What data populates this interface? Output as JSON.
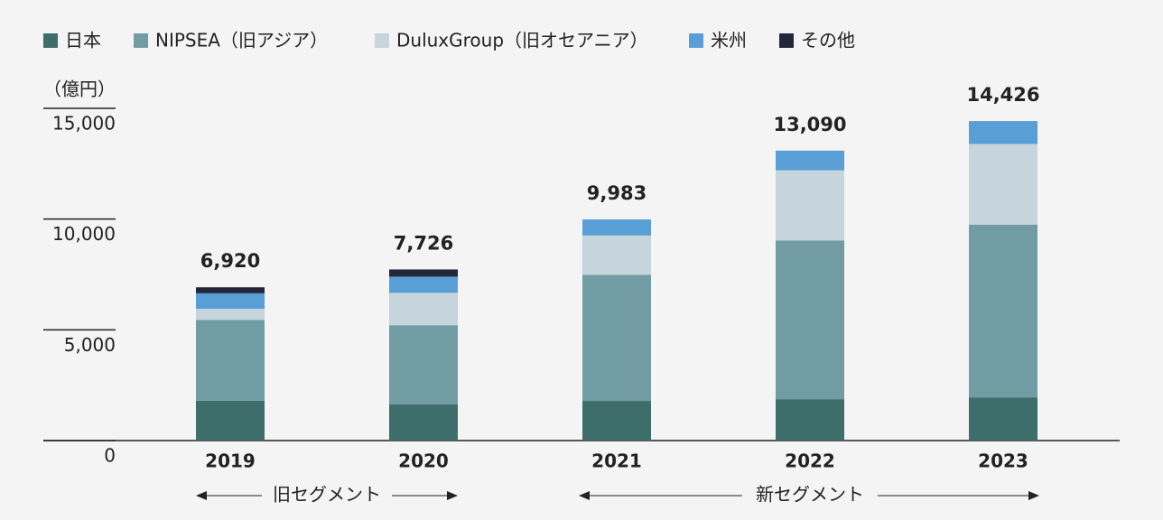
{
  "chart_data": {
    "type": "stacked-bar",
    "y_unit_label": "（億円）",
    "categories": [
      "2019",
      "2020",
      "2021",
      "2022",
      "2023"
    ],
    "series": [
      {
        "name": "日本",
        "color": "#3e6e6b",
        "values": [
          1800,
          1630,
          1790,
          1870,
          1950
        ]
      },
      {
        "name": "NIPSEA（旧アジア）",
        "color": "#729ca4",
        "values": [
          3650,
          3580,
          5690,
          7160,
          7800
        ]
      },
      {
        "name": "DuluxGroup（旧オセアニア）",
        "color": "#c5d5db",
        "values": [
          500,
          1460,
          1780,
          3170,
          3640
        ]
      },
      {
        "name": "米州",
        "color": "#599fd6",
        "values": [
          700,
          730,
          723,
          890,
          1036
        ]
      },
      {
        "name": "その他",
        "color": "#22273a",
        "values": [
          270,
          326,
          null,
          null,
          null
        ]
      }
    ],
    "totals": [
      6920,
      7726,
      9983,
      13090,
      14426
    ],
    "total_labels": [
      "6,920",
      "7,726",
      "9,983",
      "13,090",
      "14,426"
    ],
    "ylim": [
      0,
      15000
    ],
    "yticks": [
      0,
      {
        "value": 5000,
        "label": "5,000"
      },
      {
        "value": 10000,
        "label": "10,000"
      },
      {
        "value": 15000,
        "label": "15,000"
      }
    ],
    "annotations": [
      "旧セグメント",
      "新セグメント"
    ]
  }
}
